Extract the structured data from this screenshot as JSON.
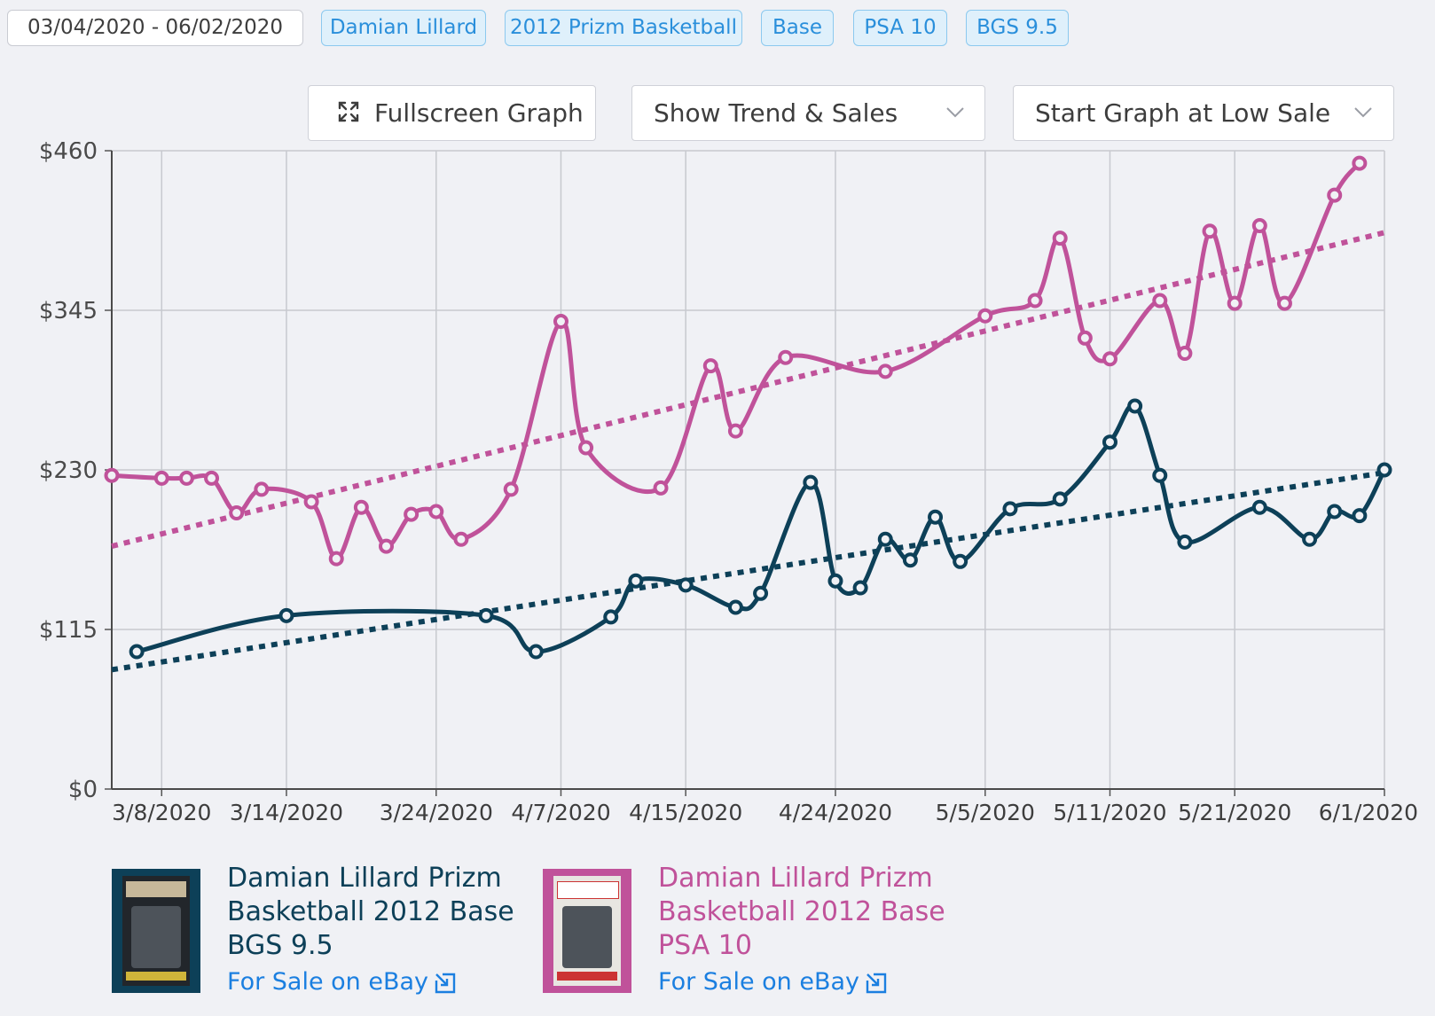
{
  "filters": {
    "date_range": "03/04/2020 - 06/02/2020",
    "tags": [
      "Damian Lillard",
      "2012 Prizm Basketball",
      "Base",
      "PSA 10",
      "BGS 9.5"
    ]
  },
  "controls": {
    "fullscreen_label": "Fullscreen Graph",
    "view_select": "Show Trend & Sales",
    "start_select": "Start Graph at Low Sale"
  },
  "icons": {
    "fullscreen": "expand-icon",
    "dropdown": "chevron-down-icon",
    "external": "external-link-icon"
  },
  "chart_data": {
    "type": "line",
    "y_ticks": [
      "$0",
      "$115",
      "$230",
      "$345",
      "$460"
    ],
    "ylim": [
      0,
      460
    ],
    "x_ticks": [
      "3/8/2020",
      "3/14/2020",
      "3/24/2020",
      "4/7/2020",
      "4/15/2020",
      "4/24/2020",
      "5/5/2020",
      "5/11/2020",
      "5/21/2020",
      "6/1/2020"
    ],
    "grid": true,
    "series": [
      {
        "name": "Damian Lillard Prizm Basketball 2012 Base PSA 10",
        "color": "#c0529a",
        "points": [
          [
            0,
            226
          ],
          [
            2,
            224
          ],
          [
            3,
            224
          ],
          [
            4,
            224
          ],
          [
            5,
            199
          ],
          [
            6,
            216
          ],
          [
            8,
            207
          ],
          [
            9,
            166
          ],
          [
            10,
            203
          ],
          [
            11,
            175
          ],
          [
            12,
            198
          ],
          [
            13,
            200
          ],
          [
            14,
            180
          ],
          [
            16,
            216
          ],
          [
            18,
            337
          ],
          [
            19,
            246
          ],
          [
            22,
            217
          ],
          [
            24,
            305
          ],
          [
            25,
            258
          ],
          [
            27,
            311
          ],
          [
            31,
            301
          ],
          [
            35,
            341
          ],
          [
            37,
            352
          ],
          [
            38,
            397
          ],
          [
            39,
            325
          ],
          [
            40,
            310
          ],
          [
            42,
            352
          ],
          [
            43,
            314
          ],
          [
            44,
            402
          ],
          [
            45,
            350
          ],
          [
            46,
            406
          ],
          [
            47,
            350
          ],
          [
            49,
            428
          ],
          [
            50,
            451
          ]
        ],
        "trend": [
          [
            0,
            175
          ],
          [
            51,
            401
          ]
        ]
      },
      {
        "name": "Damian Lillard Prizm Basketball 2012 Base BGS 9.5",
        "color": "#0d4058",
        "points": [
          [
            1,
            99
          ],
          [
            7,
            125
          ],
          [
            15,
            125
          ],
          [
            17,
            99
          ],
          [
            20,
            124
          ],
          [
            21,
            150
          ],
          [
            23,
            147
          ],
          [
            25,
            131
          ],
          [
            26,
            141
          ],
          [
            28,
            221
          ],
          [
            29,
            150
          ],
          [
            30,
            145
          ],
          [
            31,
            180
          ],
          [
            32,
            165
          ],
          [
            33,
            196
          ],
          [
            34,
            164
          ],
          [
            36,
            202
          ],
          [
            38,
            209
          ],
          [
            40,
            250
          ],
          [
            41,
            276
          ],
          [
            42,
            226
          ],
          [
            43,
            178
          ],
          [
            46,
            203
          ],
          [
            48,
            180
          ],
          [
            49,
            200
          ],
          [
            50,
            197
          ],
          [
            51,
            230
          ]
        ],
        "trend": [
          [
            0,
            86
          ],
          [
            51,
            228
          ]
        ]
      }
    ]
  },
  "cards": [
    {
      "title_lines": [
        "Damian Lillard Prizm",
        "Basketball 2012 Base",
        "BGS 9.5"
      ],
      "link": "For Sale on eBay",
      "color": "#0d4058"
    },
    {
      "title_lines": [
        "Damian Lillard Prizm",
        "Basketball 2012 Base",
        "PSA 10"
      ],
      "link": "For Sale on eBay",
      "color": "#c0529a"
    }
  ]
}
